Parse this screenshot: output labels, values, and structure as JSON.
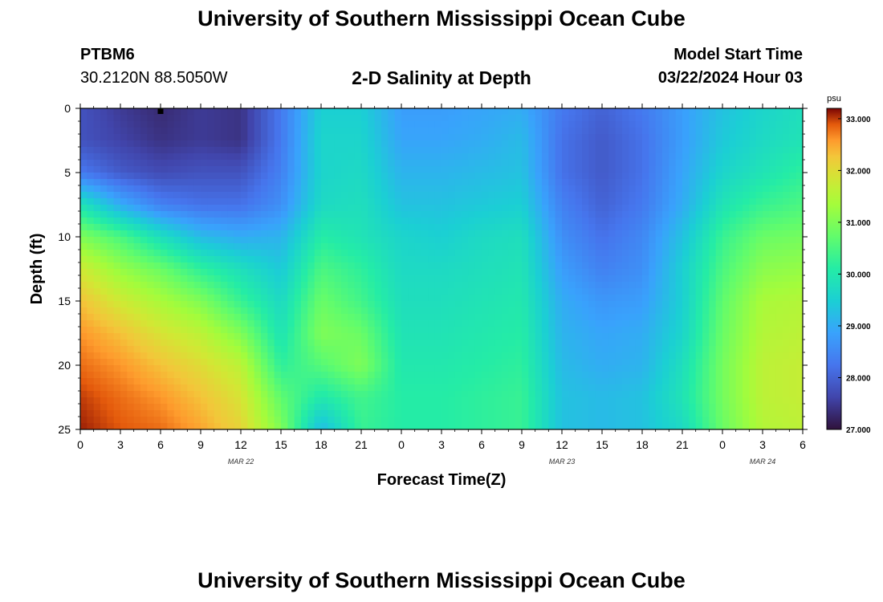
{
  "header": {
    "title": "University of Southern Mississippi Ocean Cube",
    "station_id": "PTBM6",
    "station_coords": "30.2120N  88.5050W",
    "subtitle": "2-D Salinity at Depth",
    "model_start_label": "Model Start Time",
    "model_start_value": "03/22/2024 Hour 03",
    "footer_title": "University of Southern Mississippi Ocean Cube"
  },
  "chart_data": {
    "type": "heatmap",
    "title": "2-D Salinity at Depth",
    "xlabel": "Forecast Time(Z)",
    "ylabel": "Depth (ft)",
    "x_tick_labels": [
      "0",
      "3",
      "6",
      "9",
      "12",
      "15",
      "18",
      "21",
      "0",
      "3",
      "6",
      "9",
      "12",
      "15",
      "18",
      "21",
      "0",
      "3",
      "6"
    ],
    "x_range_hours": [
      0,
      54
    ],
    "date_labels": [
      {
        "label": "MAR 22",
        "hour": 12
      },
      {
        "label": "MAR 23",
        "hour": 36
      },
      {
        "label": "MAR 24",
        "hour": 51
      }
    ],
    "y_tick_labels": [
      "0",
      "5",
      "10",
      "15",
      "20",
      "25"
    ],
    "y_range_ft": [
      0,
      25
    ],
    "y_inverted": true,
    "colorbar": {
      "unit": "psu",
      "min": 27.0,
      "max": 33.2,
      "tick_labels": [
        "33.000",
        "32.000",
        "31.000",
        "30.000",
        "29.000",
        "28.000",
        "27.000"
      ],
      "tick_values": [
        33,
        32,
        31,
        30,
        29,
        28,
        27
      ]
    },
    "marker": {
      "hour": 6,
      "depth": 0
    },
    "field": {
      "description": "salinity (psu) by forecast hour (columns) and depth (rows)",
      "hours": [
        0,
        3,
        6,
        9,
        12,
        15,
        18,
        21,
        24,
        27,
        30,
        33,
        36,
        39,
        42,
        45,
        48,
        51,
        54
      ],
      "depths": [
        0,
        2.5,
        5,
        7.5,
        10,
        12.5,
        15,
        17.5,
        20,
        22.5,
        25
      ],
      "values": [
        [
          27.8,
          27.5,
          27.3,
          27.5,
          27.4,
          28.3,
          29.5,
          29.5,
          28.8,
          28.8,
          28.9,
          29.0,
          28.3,
          28.0,
          28.3,
          28.8,
          29.3,
          29.6,
          29.8
        ],
        [
          27.8,
          27.6,
          27.4,
          27.5,
          27.4,
          28.3,
          29.6,
          29.6,
          28.9,
          28.9,
          29.0,
          29.2,
          28.2,
          27.9,
          28.2,
          28.8,
          29.4,
          29.7,
          29.9
        ],
        [
          28.3,
          27.9,
          27.7,
          27.8,
          27.8,
          28.4,
          29.6,
          29.7,
          29.1,
          29.1,
          29.2,
          29.3,
          28.2,
          27.9,
          28.2,
          28.9,
          29.6,
          29.9,
          30.2
        ],
        [
          29.9,
          29.0,
          28.4,
          28.2,
          28.2,
          28.6,
          29.7,
          29.8,
          29.3,
          29.3,
          29.4,
          29.5,
          28.4,
          28.0,
          28.3,
          29.0,
          29.9,
          30.3,
          30.5
        ],
        [
          31.0,
          30.5,
          29.8,
          29.2,
          29.0,
          29.1,
          30.1,
          29.9,
          29.6,
          29.5,
          29.7,
          29.8,
          28.6,
          28.2,
          28.5,
          29.3,
          30.3,
          30.8,
          30.9
        ],
        [
          31.8,
          31.2,
          30.8,
          30.2,
          29.8,
          29.4,
          30.5,
          30.2,
          29.7,
          29.7,
          29.8,
          29.9,
          28.8,
          28.4,
          28.6,
          29.5,
          30.5,
          31.1,
          31.2
        ],
        [
          32.3,
          31.8,
          31.4,
          31.0,
          30.3,
          29.7,
          30.8,
          30.4,
          29.8,
          29.8,
          29.9,
          30.0,
          29.0,
          28.7,
          28.8,
          29.5,
          30.7,
          31.4,
          31.5
        ],
        [
          32.6,
          32.3,
          31.9,
          31.6,
          31.0,
          29.9,
          31.0,
          30.8,
          29.9,
          29.9,
          30.0,
          30.1,
          29.1,
          28.9,
          29.0,
          29.6,
          30.8,
          31.5,
          31.6
        ],
        [
          32.8,
          32.6,
          32.3,
          32.0,
          31.6,
          30.2,
          30.6,
          31.0,
          30.0,
          30.0,
          30.1,
          30.2,
          29.2,
          29.0,
          29.1,
          29.8,
          30.9,
          31.6,
          31.7
        ],
        [
          33.0,
          32.8,
          32.6,
          32.3,
          31.9,
          30.7,
          30.0,
          30.4,
          30.1,
          30.1,
          30.2,
          30.3,
          29.3,
          29.2,
          29.3,
          29.9,
          30.9,
          31.6,
          31.7
        ],
        [
          33.1,
          32.9,
          32.8,
          32.5,
          32.1,
          31.0,
          29.2,
          30.3,
          30.1,
          30.1,
          30.2,
          30.3,
          29.3,
          29.2,
          29.3,
          29.7,
          30.8,
          31.5,
          31.6
        ]
      ]
    }
  }
}
